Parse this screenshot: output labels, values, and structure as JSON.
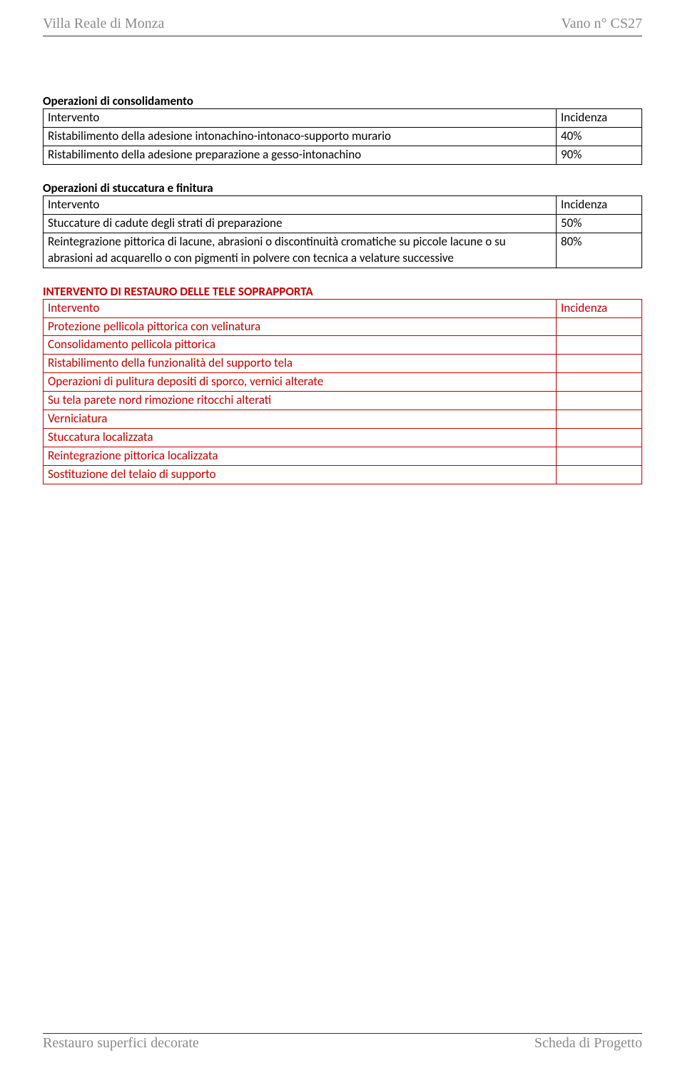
{
  "header": {
    "left": "Villa Reale di Monza",
    "right": "Vano n° CS27"
  },
  "section1": {
    "title": "Operazioni di consolidamento",
    "header_left": "Intervento",
    "header_right": "Incidenza",
    "rows": [
      {
        "text": "Ristabilimento della adesione intonachino-intonaco-supporto murario",
        "val": "40%"
      },
      {
        "text": "Ristabilimento della adesione preparazione a gesso-intonachino",
        "val": "90%"
      }
    ]
  },
  "section2": {
    "title": "Operazioni di stuccatura  e finitura",
    "header_left": "Intervento",
    "header_right": "Incidenza",
    "rows": [
      {
        "text": "Stuccature di cadute degli strati di preparazione",
        "val": "50%"
      },
      {
        "text": "Reintegrazione pittorica di lacune, abrasioni o discontinuità cromatiche su piccole lacune o su abrasioni ad acquarello o con pigmenti in polvere con tecnica a velature successive",
        "val": "80%"
      }
    ]
  },
  "section3": {
    "title": "INTERVENTO DI RESTAURO DELLE TELE SOPRAPPORTA",
    "header_left": "Intervento",
    "header_right": "Incidenza",
    "rows": [
      {
        "text": "Protezione pellicola pittorica con velinatura",
        "val": ""
      },
      {
        "text": "Consolidamento pellicola pittorica",
        "val": ""
      },
      {
        "text": "Ristabilimento della funzionalità del supporto tela",
        "val": ""
      },
      {
        "text": "Operazioni di pulitura depositi di sporco, vernici alterate",
        "val": ""
      },
      {
        "text": "Su tela parete nord rimozione ritocchi alterati",
        "val": ""
      },
      {
        "text": "Verniciatura",
        "val": ""
      },
      {
        "text": "Stuccatura localizzata",
        "val": ""
      },
      {
        "text": "Reintegrazione pittorica localizzata",
        "val": ""
      },
      {
        "text": "Sostituzione del telaio di supporto",
        "val": ""
      }
    ]
  },
  "footer": {
    "left": "Restauro superfici decorate",
    "right": "Scheda di Progetto"
  }
}
